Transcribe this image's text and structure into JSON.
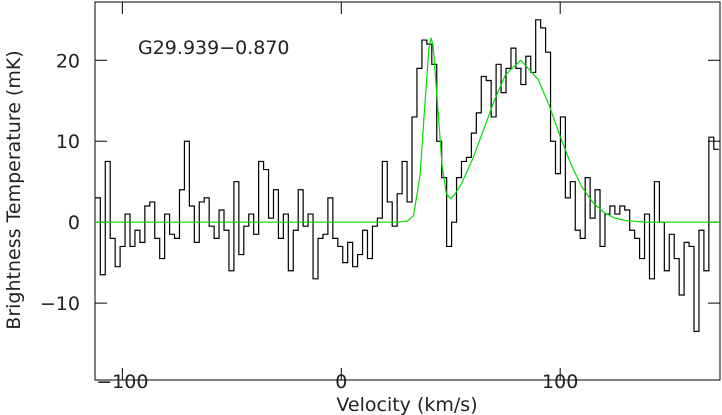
{
  "chart_data": {
    "type": "step",
    "annotation": "G29.939−0.870",
    "xlabel": "Velocity (km/s)",
    "ylabel": "Brightness Temperature (mK)",
    "xlim": [
      -112.5,
      173
    ],
    "ylim": [
      -19.5,
      27.2
    ],
    "xticks": [
      {
        "value": -100,
        "label": "−100"
      },
      0,
      100
    ],
    "yticks": [
      {
        "value": -10,
        "label": "−10"
      },
      0,
      10,
      20
    ],
    "series": [
      {
        "type": "step",
        "color": "#000000",
        "x": [
          -111.2,
          -108.94,
          -106.68,
          -104.42,
          -102.16,
          -99.9,
          -97.64,
          -95.38,
          -93.12,
          -90.86,
          -88.6,
          -86.34,
          -84.08,
          -81.82,
          -79.56,
          -77.3,
          -75.04,
          -72.78,
          -70.52,
          -68.26,
          -66,
          -63.74,
          -61.48,
          -59.22,
          -56.96,
          -54.7,
          -52.44,
          -50.18,
          -47.92,
          -45.66,
          -43.4,
          -41.14,
          -38.88,
          -36.62,
          -34.36,
          -32.1,
          -29.84,
          -27.58,
          -25.32,
          -23.06,
          -20.8,
          -18.54,
          -16.28,
          -14.02,
          -11.76,
          -9.5,
          -7.24,
          -4.98,
          -2.72,
          -0.46,
          1.8,
          4.06,
          6.32,
          8.58,
          10.84,
          13.1,
          15.36,
          17.62,
          19.88,
          22.14,
          24.4,
          26.66,
          28.92,
          31.18,
          33.44,
          35.7,
          37.96,
          40.22,
          42.48,
          44.74,
          47,
          49.26,
          51.52,
          53.78,
          56.04,
          58.3,
          60.56,
          62.82,
          65.08,
          67.34,
          69.6,
          71.86,
          74.12,
          76.38,
          78.64,
          80.9,
          83.16,
          85.42,
          87.68,
          89.94,
          92.2,
          94.46,
          96.72,
          98.98,
          101.24,
          103.5,
          105.76,
          108.02,
          110.28,
          112.54,
          114.8,
          117.06,
          119.32,
          121.58,
          123.84,
          126.1,
          128.36,
          130.62,
          132.88,
          135.14,
          137.4,
          139.66,
          141.92,
          144.18,
          146.44,
          148.7,
          150.96,
          153.22,
          155.48,
          157.74,
          160,
          162.26,
          164.52,
          166.78,
          169.04,
          171.3
        ],
        "values": [
          3,
          -6.5,
          7.5,
          -2,
          -5.5,
          -3,
          1,
          -3,
          -1,
          -2.5,
          2,
          2.5,
          -2,
          -4.5,
          1,
          -1.5,
          -2,
          4,
          10,
          2,
          -2.5,
          2.5,
          3,
          -0.5,
          -2,
          1.5,
          -1,
          -6,
          5,
          -4,
          -0.5,
          1,
          -1.5,
          7.5,
          6.5,
          0.5,
          4,
          -2,
          1,
          -6,
          -1,
          4,
          -0.5,
          1,
          -7,
          -2,
          -1.5,
          3,
          -2,
          -3,
          -5,
          -2.5,
          -5.5,
          -4,
          -1,
          -4.5,
          -0.5,
          0.5,
          7.5,
          2.5,
          -0.5,
          3.5,
          7.5,
          2.5,
          13,
          19,
          22.5,
          22,
          19.5,
          10,
          5.5,
          -3,
          0,
          5.5,
          7.5,
          8,
          11,
          13.5,
          18,
          17.5,
          13,
          19.5,
          16,
          19,
          21.5,
          19,
          17,
          20.5,
          18.5,
          25,
          24,
          21,
          10,
          6,
          13,
          3,
          5,
          -1,
          -2,
          5.5,
          0.5,
          4,
          -3,
          1,
          2,
          1,
          2,
          1.5,
          -1,
          -2,
          -4.5,
          1,
          -7,
          5,
          0,
          -6,
          -1.5,
          -4.5,
          -9,
          -2.5,
          -3,
          -13.5,
          -1,
          -6,
          10.5,
          9
        ]
      },
      {
        "type": "line",
        "color": "#00dd00",
        "x": [
          -112.5,
          20,
          25,
          30,
          33,
          36,
          38,
          40,
          41,
          42,
          44,
          46,
          48,
          50,
          52,
          55,
          60,
          65,
          70,
          75,
          82,
          90,
          95,
          100,
          105,
          110,
          115,
          120,
          125,
          130,
          140,
          173
        ],
        "values": [
          0,
          0,
          0,
          0.1,
          0.8,
          5.8,
          13.8,
          21.4,
          22.8,
          21.7,
          14.5,
          7.1,
          3.5,
          2.9,
          3.5,
          4.8,
          7.8,
          11.4,
          15.1,
          18.2,
          20,
          17.6,
          14.4,
          10.6,
          7.1,
          4.3,
          2.4,
          1.2,
          0.5,
          0.2,
          0,
          0
        ]
      }
    ]
  }
}
